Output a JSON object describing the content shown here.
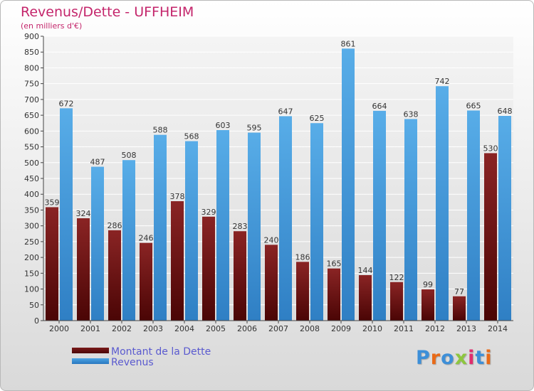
{
  "header": {
    "title": "Revenus/Dette - UFFHEIM",
    "subtitle": "(en milliers d'€)"
  },
  "legend": {
    "dette_label": "Montant de la Dette",
    "revenus_label": "Revenus"
  },
  "logo": {
    "text": "Proxiti",
    "letter_colors": [
      "#3d8fd8",
      "#e96a17",
      "#3d8fd8",
      "#8dc63f",
      "#e02d6e",
      "#3d8fd8",
      "#e96a17"
    ]
  },
  "colors": {
    "dette": "#7a1a1a",
    "dette_dark": "#4a0505",
    "revenus": "#4aa3e3",
    "revenus_dark": "#2a78c0",
    "title": "#c4256b",
    "legend_text": "#5a5acf",
    "grid": "#ffffff",
    "axis": "#444444",
    "tick_text": "#333333"
  },
  "chart_data": {
    "type": "bar",
    "title": "Revenus/Dette - UFFHEIM",
    "subtitle": "(en milliers d'€)",
    "xlabel": "",
    "ylabel": "",
    "ylim": [
      0,
      900
    ],
    "y_ticks": [
      0,
      50,
      100,
      150,
      200,
      250,
      300,
      350,
      400,
      450,
      500,
      550,
      600,
      650,
      700,
      750,
      800,
      850,
      900
    ],
    "grid": true,
    "legend_position": "bottom-left",
    "categories": [
      "2000",
      "2001",
      "2002",
      "2003",
      "2004",
      "2005",
      "2006",
      "2007",
      "2008",
      "2009",
      "2010",
      "2011",
      "2012",
      "2013",
      "2014"
    ],
    "series": [
      {
        "name": "Montant de la Dette",
        "values": [
          359,
          324,
          286,
          246,
          378,
          329,
          283,
          240,
          186,
          165,
          144,
          122,
          99,
          77,
          530
        ]
      },
      {
        "name": "Revenus",
        "values": [
          672,
          487,
          508,
          588,
          568,
          603,
          595,
          647,
          625,
          861,
          664,
          638,
          742,
          665,
          648
        ]
      }
    ]
  }
}
